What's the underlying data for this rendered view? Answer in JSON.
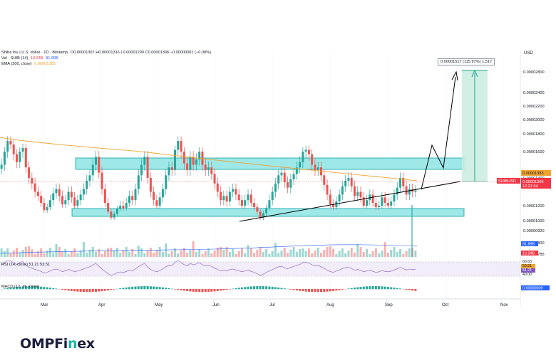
{
  "header": {
    "symbol_line": "Shiba Inu | U.S. dollar · 1D · Bitstamp",
    "ohlc": "O0.00001307  H0.00001316  L0.00001290  C0.00001306  −0.00000001 (−0.08%)",
    "vol_label": "Vol · SHIB (14)",
    "vol_value_1": "10.24B",
    "vol_value_2": "81.89B",
    "ema_label": "EMA (200, close)",
    "ema_value": "0.00001383"
  },
  "currency": "USD",
  "measure_label": "0.00001517 (115.97%) 1,517",
  "brand": {
    "name_a": "OMPFi",
    "name_b": "n",
    "name_c": "ex"
  },
  "colors": {
    "up": "#26a69a",
    "down": "#ef5350",
    "ema": "#f0a430",
    "zone_fill": "#7fe0e0",
    "zone_stroke": "#0aa3a3",
    "target_fill": "#c9ece0",
    "target_arrow": "#17a58a",
    "price_tag": "#f23645",
    "ema_tag": "#f0a430",
    "vol_tag": "#2962ff",
    "rsi_band": "#ece6f8",
    "rsi_line": "#7e57c2"
  },
  "chart_data": {
    "type": "candlestick",
    "price_axis_ticks": [
      "0.00002800",
      "0.00002400",
      "0.00002200",
      "0.00002000",
      "0.00001800",
      "0.00001600",
      "0.00001400",
      "0.00001200",
      "0.00001000",
      "0.00000920",
      "0.00000800",
      "0.00000785"
    ],
    "price_axis_values": [
      2.8e-05,
      2.4e-05,
      2.2e-05,
      2e-05,
      1.8e-05,
      1.6e-05,
      1.4e-05,
      1.2e-05,
      1e-05,
      9.2e-06,
      8e-06,
      7.85e-06
    ],
    "x_ticks": [
      "Mar",
      "Apr",
      "May",
      "Jun",
      "Jul",
      "Aug",
      "Sep",
      "Oct",
      "Nov"
    ],
    "ylim": [
      7.8e-06,
      2.94e-05
    ],
    "closes": [
      1.5e-05,
      1.6e-05,
      1.72e-05,
      1.68e-05,
      1.58e-05,
      1.52e-05,
      1.6e-05,
      1.64e-05,
      1.48e-05,
      1.4e-05,
      1.36e-05,
      1.3e-05,
      1.27e-05,
      1.22e-05,
      1.14e-05,
      1.18e-05,
      1.24e-05,
      1.29e-05,
      1.32e-05,
      1.27e-05,
      1.21e-05,
      1.24e-05,
      1.3e-05,
      1.26e-05,
      1.2e-05,
      1.24e-05,
      1.28e-05,
      1.32e-05,
      1.38e-05,
      1.42e-05,
      1.5e-05,
      1.56e-05,
      1.44e-05,
      1.32e-05,
      1.22e-05,
      1.12e-05,
      1.04e-05,
      1.09e-05,
      1.16e-05,
      1.2e-05,
      1.17e-05,
      1.22e-05,
      1.27e-05,
      1.24e-05,
      1.32e-05,
      1.42e-05,
      1.5e-05,
      1.56e-05,
      1.4e-05,
      1.3e-05,
      1.24e-05,
      1.2e-05,
      1.26e-05,
      1.32e-05,
      1.42e-05,
      1.48e-05,
      1.46e-05,
      1.62e-05,
      1.72e-05,
      1.6e-05,
      1.51e-05,
      1.46e-05,
      1.56e-05,
      1.5e-05,
      1.54e-05,
      1.6e-05,
      1.5e-05,
      1.46e-05,
      1.48e-05,
      1.43e-05,
      1.36e-05,
      1.3e-05,
      1.24e-05,
      1.27e-05,
      1.23e-05,
      1.3e-05,
      1.32e-05,
      1.28e-05,
      1.24e-05,
      1.2e-05,
      1.24e-05,
      1.28e-05,
      1.22e-05,
      1.18e-05,
      1.12e-05,
      1.04e-05,
      1.1e-05,
      1.17e-05,
      1.24e-05,
      1.3e-05,
      1.36e-05,
      1.42e-05,
      1.44e-05,
      1.37e-05,
      1.33e-05,
      1.39e-05,
      1.43e-05,
      1.48e-05,
      1.52e-05,
      1.6e-05,
      1.62e-05,
      1.58e-05,
      1.5e-05,
      1.46e-05,
      1.48e-05,
      1.42e-05,
      1.35e-05,
      1.28e-05,
      1.21e-05,
      1.18e-05,
      1.23e-05,
      1.28e-05,
      1.34e-05,
      1.38e-05,
      1.4e-05,
      1.34e-05,
      1.27e-05,
      1.3e-05,
      1.26e-05,
      1.2e-05,
      1.24e-05,
      1.28e-05,
      1.22e-05,
      1.18e-05,
      1.2e-05,
      1.26e-05,
      1.22e-05,
      1.2e-05,
      1.23e-05,
      1.28e-05,
      1.33e-05,
      1.4e-05,
      1.34e-05,
      1.28e-05,
      1.32e-05,
      1.3e-05,
      1.31e-05
    ],
    "ema200": {
      "start": 1.76e-05,
      "end": 1.38e-05
    },
    "price_tags": [
      {
        "label": "SHIBUSD",
        "value": 1.306e-05,
        "text": "0.00001306",
        "sub": "12:21:54"
      },
      {
        "label": "",
        "value": 1.383e-05,
        "text": "0.00001383"
      }
    ],
    "volume": {
      "last_label": "81.89B",
      "axis_label": "10.24B"
    },
    "rsi": {
      "label": "RSI (14, close)",
      "v1": "51.21",
      "v2": "53.51",
      "axis": [
        "60.63",
        "53.51",
        "51.21",
        "40.00"
      ]
    },
    "macd": {
      "label": "MACD (12, 26, close)",
      "axis_value": "0.00000009"
    }
  }
}
